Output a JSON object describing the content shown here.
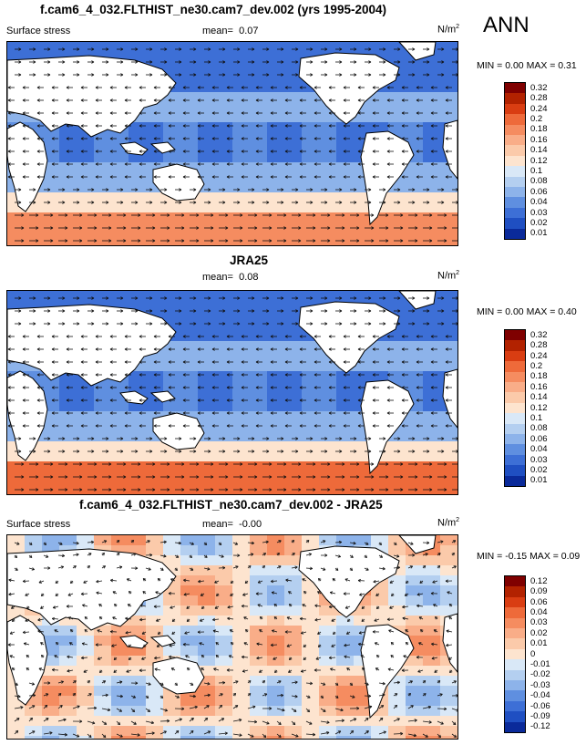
{
  "season": "ANN",
  "panels": [
    {
      "title": "f.cam6_4_032.FLTHIST_ne30.cam7_dev.002 (yrs 1995-2004)",
      "variable": "Surface stress",
      "mean_label": "mean=",
      "mean": "0.07",
      "units": "N/m",
      "units_sup": "2",
      "minmax": "MIN =  0.00 MAX =  0.31",
      "colorbar": [
        "0.32",
        "0.28",
        "0.24",
        "0.2",
        "0.18",
        "0.16",
        "0.14",
        "0.12",
        "0.1",
        "0.08",
        "0.06",
        "0.04",
        "0.03",
        "0.02",
        "0.01"
      ],
      "colors": [
        "#7f0000",
        "#b22200",
        "#d93d12",
        "#ee6a3a",
        "#f58c60",
        "#f9ad88",
        "#fbcaaa",
        "#fde4cf",
        "#d9e8f7",
        "#b4cff0",
        "#8db3ea",
        "#5f8fe0",
        "#3d6fd6",
        "#1f4fc2",
        "#0a2a9a"
      ]
    },
    {
      "title": "JRA25",
      "variable": "Surface stress",
      "mean_label": "mean=",
      "mean": "0.08",
      "units": "N/m",
      "units_sup": "2",
      "minmax": "MIN =  0.00 MAX =  0.40",
      "colorbar": [
        "0.32",
        "0.28",
        "0.24",
        "0.2",
        "0.18",
        "0.16",
        "0.14",
        "0.12",
        "0.1",
        "0.08",
        "0.06",
        "0.04",
        "0.03",
        "0.02",
        "0.01"
      ],
      "colors": [
        "#7f0000",
        "#b22200",
        "#d93d12",
        "#ee6a3a",
        "#f58c60",
        "#f9ad88",
        "#fbcaaa",
        "#fde4cf",
        "#d9e8f7",
        "#b4cff0",
        "#8db3ea",
        "#5f8fe0",
        "#3d6fd6",
        "#1f4fc2",
        "#0a2a9a"
      ]
    },
    {
      "title": "f.cam6_4_032.FLTHIST_ne30.cam7_dev.002 - JRA25",
      "variable": "Surface stress",
      "mean_label": "mean=",
      "mean": "-0.00",
      "units": "N/m",
      "units_sup": "2",
      "minmax": "MIN = -0.15 MAX =  0.09",
      "colorbar": [
        "0.12",
        "0.09",
        "0.06",
        "0.04",
        "0.03",
        "0.02",
        "0.01",
        "0",
        "-0.01",
        "-0.02",
        "-0.03",
        "-0.04",
        "-0.06",
        "-0.09",
        "-0.12"
      ],
      "colors": [
        "#7f0000",
        "#b22200",
        "#d93d12",
        "#ee6a3a",
        "#f58c60",
        "#f9ad88",
        "#fbcaaa",
        "#fde4cf",
        "#d9e8f7",
        "#b4cff0",
        "#8db3ea",
        "#5f8fe0",
        "#3d6fd6",
        "#1f4fc2",
        "#0a2a9a"
      ]
    }
  ]
}
